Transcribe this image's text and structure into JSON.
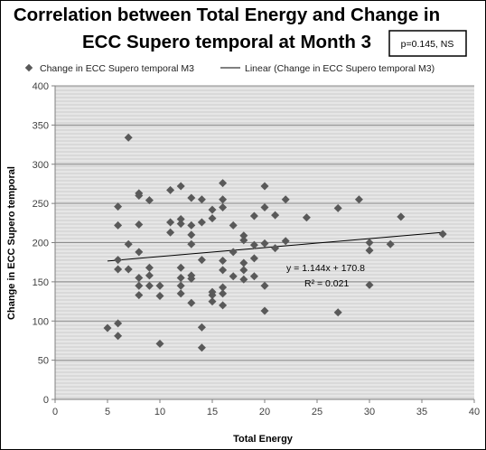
{
  "chart_data": {
    "type": "scatter",
    "title": "Correlation between Total Energy and Change in ECC Supero temporal at Month 3",
    "title_lines": [
      "Correlation between Total Energy and Change in",
      "ECC Supero temporal at Month 3"
    ],
    "annotation_box": "p=0.145, NS",
    "xlabel": "Total Energy",
    "ylabel": "Change in ECC Supero temporal",
    "xlim": [
      0,
      40
    ],
    "ylim": [
      0,
      400
    ],
    "x_ticks": [
      0,
      5,
      10,
      15,
      20,
      25,
      30,
      35,
      40
    ],
    "y_ticks": [
      0,
      50,
      100,
      150,
      200,
      250,
      300,
      350,
      400
    ],
    "grid": "horizontal",
    "legend_position": "top",
    "legend": [
      {
        "label": "Change in ECC Supero temporal M3",
        "marker": "diamond"
      },
      {
        "label": "Linear (Change in ECC Supero temporal M3)",
        "marker": "line"
      }
    ],
    "marker_color": "#595959",
    "trendline": {
      "slope": 1.144,
      "intercept": 170.8,
      "x_range": [
        5,
        37
      ],
      "equation": "y = 1.144x + 170.8",
      "r_squared": "R² = 0.021"
    },
    "series": [
      {
        "name": "Change in ECC Supero temporal M3",
        "points": [
          [
            5,
            91
          ],
          [
            6,
            97
          ],
          [
            6,
            81
          ],
          [
            6,
            246
          ],
          [
            6,
            222
          ],
          [
            6,
            178
          ],
          [
            6,
            166
          ],
          [
            7,
            334
          ],
          [
            7,
            198
          ],
          [
            7,
            166
          ],
          [
            8,
            263
          ],
          [
            8,
            260
          ],
          [
            8,
            223
          ],
          [
            8,
            188
          ],
          [
            8,
            155
          ],
          [
            8,
            145
          ],
          [
            8,
            133
          ],
          [
            9,
            254
          ],
          [
            9,
            168
          ],
          [
            9,
            158
          ],
          [
            9,
            145
          ],
          [
            10,
            145
          ],
          [
            10,
            132
          ],
          [
            10,
            71
          ],
          [
            11,
            267
          ],
          [
            11,
            226
          ],
          [
            11,
            213
          ],
          [
            12,
            272
          ],
          [
            12,
            230
          ],
          [
            12,
            224
          ],
          [
            12,
            168
          ],
          [
            12,
            155
          ],
          [
            12,
            145
          ],
          [
            12,
            135
          ],
          [
            13,
            257
          ],
          [
            13,
            222
          ],
          [
            13,
            210
          ],
          [
            13,
            198
          ],
          [
            13,
            158
          ],
          [
            13,
            154
          ],
          [
            13,
            123
          ],
          [
            14,
            255
          ],
          [
            14,
            226
          ],
          [
            14,
            178
          ],
          [
            14,
            92
          ],
          [
            14,
            66
          ],
          [
            15,
            242
          ],
          [
            15,
            231
          ],
          [
            15,
            137
          ],
          [
            15,
            133
          ],
          [
            15,
            125
          ],
          [
            16,
            276
          ],
          [
            16,
            255
          ],
          [
            16,
            245
          ],
          [
            16,
            177
          ],
          [
            16,
            165
          ],
          [
            16,
            143
          ],
          [
            16,
            135
          ],
          [
            16,
            120
          ],
          [
            17,
            222
          ],
          [
            17,
            188
          ],
          [
            17,
            157
          ],
          [
            18,
            209
          ],
          [
            18,
            203
          ],
          [
            18,
            174
          ],
          [
            18,
            165
          ],
          [
            18,
            153
          ],
          [
            19,
            234
          ],
          [
            19,
            197
          ],
          [
            19,
            180
          ],
          [
            19,
            157
          ],
          [
            20,
            272
          ],
          [
            20,
            245
          ],
          [
            20,
            199
          ],
          [
            20,
            145
          ],
          [
            20,
            113
          ],
          [
            21,
            235
          ],
          [
            21,
            193
          ],
          [
            22,
            255
          ],
          [
            22,
            202
          ],
          [
            24,
            232
          ],
          [
            27,
            244
          ],
          [
            27,
            111
          ],
          [
            29,
            255
          ],
          [
            30,
            200
          ],
          [
            30,
            190
          ],
          [
            30,
            146
          ],
          [
            32,
            198
          ],
          [
            33,
            233
          ],
          [
            37,
            211
          ]
        ]
      }
    ]
  }
}
